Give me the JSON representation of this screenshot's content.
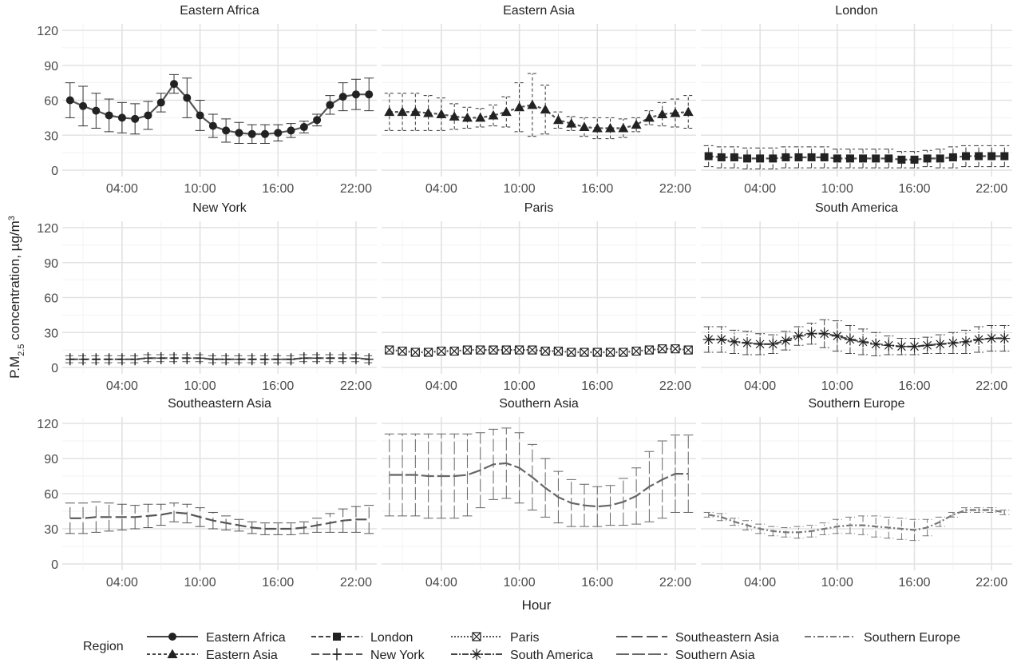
{
  "chart_data": {
    "type": "line",
    "facet_by": "Region",
    "xlabel": "Hour",
    "ylabel": "P.M₂.₅ concentration, µg/m³",
    "ylabel_parts": {
      "main": "P.M",
      "sub": "2.5",
      "rest": " concentration, µg/m",
      "sup": "3"
    },
    "ylim": [
      0,
      120
    ],
    "yticks": [
      0,
      30,
      60,
      90,
      120
    ],
    "xlim": [
      -0.6,
      23.6
    ],
    "xticks": [
      {
        "value": 4,
        "label": "04:00"
      },
      {
        "value": 10,
        "label": "10:00"
      },
      {
        "value": 16,
        "label": "16:00"
      },
      {
        "value": 22,
        "label": "22:00"
      }
    ],
    "x_minor_ticks": [
      1,
      7,
      13,
      19
    ],
    "grid": true,
    "legend": {
      "title": "Region",
      "position": "bottom"
    },
    "hours": [
      0,
      1,
      2,
      3,
      4,
      5,
      6,
      7,
      8,
      9,
      10,
      11,
      12,
      13,
      14,
      15,
      16,
      17,
      18,
      19,
      20,
      21,
      22,
      23
    ],
    "series": [
      {
        "name": "Eastern Africa",
        "marker": "circle",
        "dash": "",
        "color": "#333333",
        "values": [
          60,
          55,
          51,
          47,
          45,
          44,
          47,
          58,
          74,
          62,
          47,
          38,
          34,
          32,
          31,
          31,
          32,
          34,
          37,
          43,
          56,
          63,
          65,
          65
        ],
        "err": [
          15,
          17,
          15,
          14,
          13,
          13,
          12,
          8,
          8,
          17,
          13,
          10,
          10,
          9,
          8,
          8,
          7,
          6,
          5,
          5,
          8,
          12,
          13,
          14
        ]
      },
      {
        "name": "Eastern Asia",
        "marker": "triangle",
        "dash": "4,3",
        "color": "#333333",
        "values": [
          50,
          50,
          50,
          49,
          48,
          46,
          45,
          45,
          47,
          50,
          54,
          56,
          52,
          43,
          40,
          37,
          36,
          36,
          36,
          39,
          45,
          48,
          49,
          50
        ],
        "err": [
          16,
          16,
          16,
          15,
          14,
          11,
          9,
          8,
          9,
          13,
          21,
          27,
          21,
          7,
          6,
          8,
          9,
          9,
          8,
          6,
          6,
          10,
          12,
          14
        ]
      },
      {
        "name": "London",
        "marker": "square",
        "dash": "6,3",
        "color": "#333333",
        "values": [
          12,
          11,
          11,
          10,
          10,
          10,
          11,
          11,
          11,
          11,
          10,
          10,
          10,
          10,
          10,
          9,
          9,
          10,
          10,
          11,
          12,
          12,
          12,
          12
        ],
        "err": [
          9,
          9,
          9,
          9,
          9,
          9,
          9,
          9,
          9,
          9,
          8,
          8,
          8,
          8,
          8,
          7,
          7,
          7,
          8,
          9,
          9,
          9,
          9,
          9
        ]
      },
      {
        "name": "New York",
        "marker": "plus",
        "dash": "10,4",
        "color": "#555555",
        "values": [
          7,
          7,
          7,
          7,
          7,
          7,
          8,
          8,
          8,
          8,
          8,
          7,
          7,
          7,
          7,
          7,
          7,
          7,
          8,
          8,
          8,
          8,
          8,
          7
        ],
        "err": [
          3,
          3,
          3,
          3,
          3,
          3,
          3,
          3,
          3,
          3,
          3,
          3,
          3,
          3,
          3,
          3,
          3,
          3,
          3,
          3,
          3,
          3,
          3,
          3
        ]
      },
      {
        "name": "Paris",
        "marker": "boxx",
        "dash": "2,2",
        "color": "#555555",
        "values": [
          15,
          14,
          13,
          13,
          14,
          14,
          15,
          15,
          15,
          15,
          15,
          15,
          14,
          14,
          13,
          13,
          13,
          13,
          13,
          14,
          15,
          16,
          16,
          15
        ],
        "err": [
          2,
          2,
          2,
          2,
          2,
          2,
          2,
          2,
          2,
          2,
          2,
          2,
          2,
          2,
          2,
          2,
          2,
          2,
          2,
          2,
          2,
          2,
          2,
          2
        ]
      },
      {
        "name": "South America",
        "marker": "star",
        "dash": "8,2,2,2",
        "color": "#444444",
        "values": [
          24,
          24,
          22,
          21,
          20,
          20,
          23,
          27,
          29,
          29,
          27,
          24,
          22,
          20,
          19,
          18,
          18,
          19,
          20,
          21,
          22,
          24,
          25,
          25
        ],
        "err": [
          11,
          11,
          10,
          10,
          9,
          8,
          8,
          8,
          9,
          12,
          13,
          12,
          11,
          10,
          8,
          7,
          7,
          7,
          8,
          9,
          10,
          11,
          11,
          11
        ]
      },
      {
        "name": "Southeastern Asia",
        "marker": "",
        "dash": "14,5",
        "color": "#555555",
        "values": [
          39,
          39,
          40,
          40,
          40,
          40,
          41,
          42,
          44,
          43,
          40,
          37,
          35,
          33,
          31,
          30,
          30,
          30,
          31,
          33,
          35,
          37,
          38,
          38
        ],
        "err": [
          13,
          13,
          13,
          12,
          11,
          10,
          10,
          9,
          8,
          8,
          8,
          7,
          6,
          5,
          5,
          5,
          5,
          5,
          5,
          6,
          8,
          10,
          11,
          12
        ]
      },
      {
        "name": "Southern Asia",
        "marker": "",
        "dash": "16,4",
        "color": "#666666",
        "values": [
          76,
          76,
          76,
          75,
          75,
          75,
          76,
          80,
          85,
          86,
          82,
          74,
          65,
          57,
          52,
          50,
          49,
          50,
          53,
          58,
          66,
          72,
          77,
          77
        ],
        "err": [
          35,
          35,
          35,
          36,
          36,
          36,
          35,
          32,
          30,
          30,
          30,
          28,
          25,
          22,
          20,
          18,
          17,
          17,
          20,
          24,
          30,
          33,
          33,
          33
        ]
      },
      {
        "name": "Southern Europe",
        "marker": "",
        "dash": "8,3,2,3",
        "color": "#777777",
        "values": [
          42,
          40,
          36,
          33,
          30,
          28,
          27,
          27,
          28,
          30,
          32,
          33,
          33,
          32,
          31,
          30,
          29,
          31,
          36,
          42,
          46,
          46,
          46,
          44
        ],
        "err": [
          2,
          3,
          3,
          4,
          4,
          4,
          4,
          5,
          5,
          5,
          6,
          7,
          8,
          9,
          9,
          9,
          9,
          7,
          4,
          2,
          2,
          2,
          2,
          2
        ]
      }
    ]
  }
}
